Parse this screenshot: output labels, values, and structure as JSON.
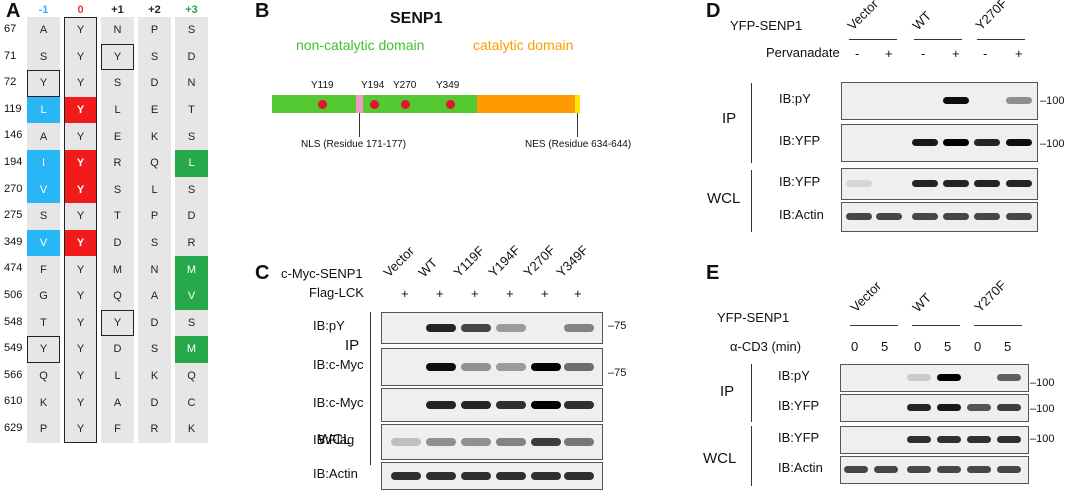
{
  "panelA": {
    "letter": "A",
    "headers": [
      "-1",
      "0",
      "+1",
      "+2",
      "+3"
    ],
    "headerColors": [
      "#29b6f6",
      "#e53935",
      "#222222",
      "#222222",
      "#2e9e44"
    ],
    "rows": [
      {
        "pos": "67",
        "cells": [
          "A",
          "Y",
          "N",
          "P",
          "S"
        ]
      },
      {
        "pos": "71",
        "cells": [
          "S",
          "Y",
          "Y",
          "S",
          "D"
        ]
      },
      {
        "pos": "72",
        "cells": [
          "Y",
          "Y",
          "S",
          "D",
          "N"
        ]
      },
      {
        "pos": "119",
        "cells": [
          "L",
          "Y",
          "L",
          "E",
          "T"
        ]
      },
      {
        "pos": "146",
        "cells": [
          "A",
          "Y",
          "E",
          "K",
          "S"
        ]
      },
      {
        "pos": "194",
        "cells": [
          "I",
          "Y",
          "R",
          "Q",
          "L"
        ]
      },
      {
        "pos": "270",
        "cells": [
          "V",
          "Y",
          "S",
          "L",
          "S"
        ]
      },
      {
        "pos": "275",
        "cells": [
          "S",
          "Y",
          "T",
          "P",
          "D"
        ]
      },
      {
        "pos": "349",
        "cells": [
          "V",
          "Y",
          "D",
          "S",
          "R"
        ]
      },
      {
        "pos": "474",
        "cells": [
          "F",
          "Y",
          "M",
          "N",
          "M"
        ]
      },
      {
        "pos": "506",
        "cells": [
          "G",
          "Y",
          "Q",
          "A",
          "V"
        ]
      },
      {
        "pos": "548",
        "cells": [
          "T",
          "Y",
          "Y",
          "D",
          "S"
        ]
      },
      {
        "pos": "549",
        "cells": [
          "Y",
          "Y",
          "D",
          "S",
          "M"
        ]
      },
      {
        "pos": "566",
        "cells": [
          "Q",
          "Y",
          "L",
          "K",
          "Q"
        ]
      },
      {
        "pos": "610",
        "cells": [
          "K",
          "Y",
          "A",
          "D",
          "C"
        ]
      },
      {
        "pos": "629",
        "cells": [
          "P",
          "Y",
          "F",
          "R",
          "K"
        ]
      }
    ],
    "colors": {
      "grey": "#e6e6e6",
      "red": "#f21b1b",
      "blue": "#29b6f6",
      "green": "#27a84a"
    }
  },
  "panelB": {
    "letter": "B",
    "title": "SENP1",
    "noncatalytic_label": "non-catalytic domain",
    "catalytic_label": "catalytic domain",
    "noncatalytic_color": "#54c931",
    "catalytic_color": "#ff9a00",
    "sites": [
      "Y119",
      "Y194",
      "Y270",
      "Y349"
    ],
    "nls_label": "NLS (Residue 171-177)",
    "nes_label": "NES (Residue 634-644)"
  },
  "panelC": {
    "letter": "C",
    "construct_label": "c-Myc-SENP1",
    "cotransfect_label": "Flag-LCK",
    "lanes": [
      "Vector",
      "WT",
      "Y119F",
      "Y194F",
      "Y270F",
      "Y349F"
    ],
    "signs": [
      "+",
      "+",
      "+",
      "+",
      "+",
      "+"
    ],
    "ip_label": "IP",
    "wcl_label": "WCL",
    "blots": [
      "IB:pY",
      "IB:c-Myc",
      "IB:c-Myc",
      "IB:Flag",
      "IB:Actin"
    ],
    "mw": [
      "75",
      "75"
    ]
  },
  "panelD": {
    "letter": "D",
    "construct_label": "YFP-SENP1",
    "groups": [
      "Vector",
      "WT",
      "Y270F"
    ],
    "treatment_label": "Pervanadate",
    "signs": [
      "-",
      "+",
      "-",
      "+",
      "-",
      "+"
    ],
    "ip_label": "IP",
    "wcl_label": "WCL",
    "blots": [
      "IB:pY",
      "IB:YFP",
      "IB:YFP",
      "IB:Actin"
    ],
    "mw": [
      "100",
      "100"
    ]
  },
  "panelE": {
    "letter": "E",
    "construct_label": "YFP-SENP1",
    "groups": [
      "Vector",
      "WT",
      "Y270F"
    ],
    "treatment_label": "α-CD3 (min)",
    "times": [
      "0",
      "5",
      "0",
      "5",
      "0",
      "5"
    ],
    "ip_label": "IP",
    "wcl_label": "WCL",
    "blots": [
      "IB:pY",
      "IB:YFP",
      "IB:YFP",
      "IB:Actin"
    ],
    "mw": [
      "100",
      "100",
      "100"
    ]
  }
}
